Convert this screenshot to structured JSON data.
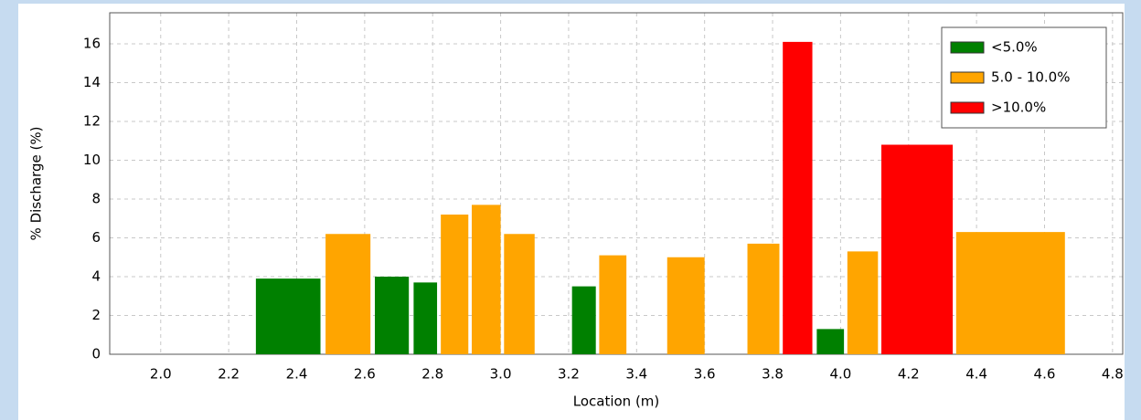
{
  "chart_data": {
    "type": "range-bar",
    "x_label": "Location (m)",
    "y_label": "% Discharge (%)",
    "xlim": [
      1.85,
      4.83
    ],
    "ylim": [
      0,
      17.6
    ],
    "xticks": [
      {
        "value": 2.0,
        "label": "2.0"
      },
      {
        "value": 2.2,
        "label": "2.2"
      },
      {
        "value": 2.4,
        "label": "2.4"
      },
      {
        "value": 2.6,
        "label": "2.6"
      },
      {
        "value": 2.8,
        "label": "2.8"
      },
      {
        "value": 3.0,
        "label": "3.0"
      },
      {
        "value": 3.2,
        "label": "3.2"
      },
      {
        "value": 3.4,
        "label": "3.4"
      },
      {
        "value": 3.6,
        "label": "3.6"
      },
      {
        "value": 3.8,
        "label": "3.8"
      },
      {
        "value": 4.0,
        "label": "4.0"
      },
      {
        "value": 4.2,
        "label": "4.2"
      },
      {
        "value": 4.4,
        "label": "4.4"
      },
      {
        "value": 4.6,
        "label": "4.6"
      },
      {
        "value": 4.8,
        "label": "4.8"
      }
    ],
    "yticks": [
      0,
      2,
      4,
      6,
      8,
      10,
      12,
      14,
      16
    ],
    "grid": true,
    "legend": "upper right",
    "series": [
      {
        "name": "<5.0%",
        "color": "#008000",
        "x_start": [
          2.28,
          2.63,
          2.744,
          3.21,
          3.93
        ],
        "x_end": [
          2.47,
          2.73,
          2.813,
          3.28,
          4.01
        ],
        "values": [
          3.9,
          4.0,
          3.7,
          3.5,
          1.3
        ]
      },
      {
        "name": "5.0 - 10.0%",
        "color": "#ffa500",
        "x_start": [
          2.485,
          2.824,
          2.915,
          3.01,
          3.29,
          3.49,
          3.726,
          4.02,
          4.34
        ],
        "x_end": [
          2.617,
          2.905,
          3.0,
          3.1,
          3.37,
          3.6,
          3.82,
          4.11,
          4.66
        ],
        "values": [
          6.2,
          7.2,
          7.7,
          6.2,
          5.1,
          5.0,
          5.7,
          5.3,
          6.3
        ]
      },
      {
        "name": ">10.0%",
        "color": "#ff0000",
        "x_start": [
          3.83,
          4.12
        ],
        "x_end": [
          3.917,
          4.33
        ],
        "values": [
          16.1,
          10.8
        ]
      }
    ]
  }
}
